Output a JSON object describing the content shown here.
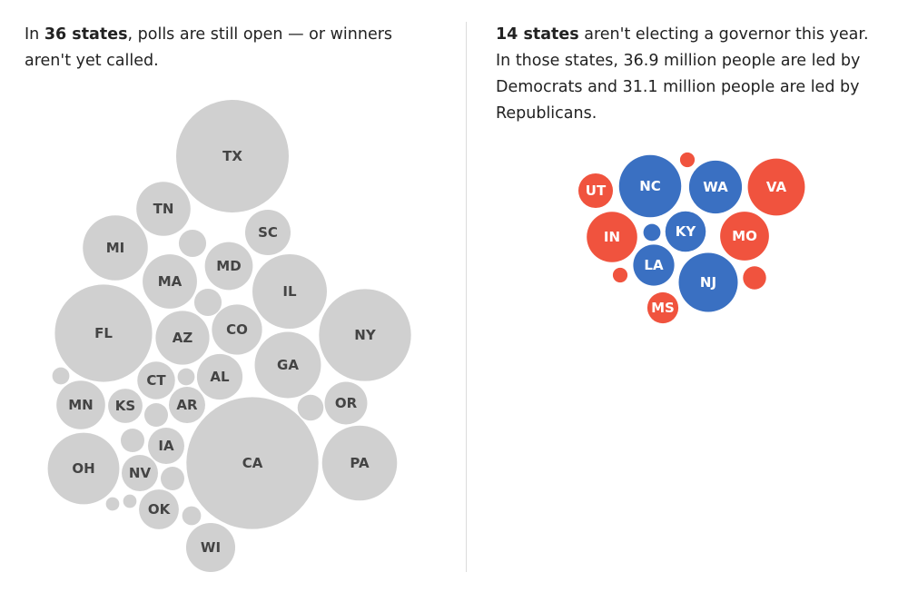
{
  "left_panel": {
    "text_strong": "36 states",
    "text_lead": "In ",
    "text_rest": ", polls are still open — or winners aren't yet called."
  },
  "right_panel": {
    "text_strong": "14 states",
    "text_rest": " aren't electing a governor this year. In those states, 36.9 million people are led by Democrats and 31.1 million people are led by Republicans."
  },
  "colors": {
    "pending": "#d0d0d0",
    "democrat": "#3a70c2",
    "republican": "#f0533e",
    "pending_label": "#444444",
    "party_label": "#ffffff"
  },
  "chart_data": [
    {
      "type": "bubble",
      "group": "pending",
      "bubbles": [
        {
          "label": "TX",
          "value": 100
        },
        {
          "label": "TN",
          "value": 23.1
        },
        {
          "label": "SC",
          "value": 16.3
        },
        {
          "label": "MI",
          "value": 33.3
        },
        {
          "label": "MD",
          "value": 18.1
        },
        {
          "label": "MA",
          "value": 23.3
        },
        {
          "label": "IL",
          "value": 43.7
        },
        {
          "label": "FL",
          "value": 74.7
        },
        {
          "label": "AZ",
          "value": 22.8
        },
        {
          "label": "CO",
          "value": 19.9
        },
        {
          "label": "NY",
          "value": 66.8
        },
        {
          "label": "GA",
          "value": 34.6
        },
        {
          "label": "CT",
          "value": 11.2
        },
        {
          "label": "AL",
          "value": 16.4
        },
        {
          "label": "MN",
          "value": 18.7
        },
        {
          "label": "KS",
          "value": 9.3
        },
        {
          "label": "AR",
          "value": 10.4
        },
        {
          "label": "OR",
          "value": 14.3
        },
        {
          "label": "IA",
          "value": 10.4
        },
        {
          "label": "CA",
          "value": 137.4
        },
        {
          "label": "PA",
          "value": 44.3
        },
        {
          "label": "OH",
          "value": 40.4
        },
        {
          "label": "NV",
          "value": 10.4
        },
        {
          "label": "OK",
          "value": 12.5
        },
        {
          "label": "WI",
          "value": 19.0
        },
        {
          "label": "",
          "value": 5.9
        },
        {
          "label": "",
          "value": 5.9
        },
        {
          "label": "",
          "value": 2.3
        },
        {
          "label": "",
          "value": 2.3
        },
        {
          "label": "",
          "value": 4.4
        },
        {
          "label": "",
          "value": 4.4
        },
        {
          "label": "",
          "value": 5.3
        },
        {
          "label": "",
          "value": 4.4
        },
        {
          "label": "",
          "value": 1.4
        },
        {
          "label": "",
          "value": 1.4
        },
        {
          "label": "",
          "value": 2.8
        }
      ]
    },
    {
      "type": "bubble",
      "group": "not-electing",
      "bubbles": [
        {
          "label": "NC",
          "value": 30.5,
          "party": "democrat"
        },
        {
          "label": "WA",
          "value": 22.0,
          "party": "democrat"
        },
        {
          "label": "KY",
          "value": 12.9,
          "party": "democrat"
        },
        {
          "label": "LA",
          "value": 13.3,
          "party": "democrat"
        },
        {
          "label": "NJ",
          "value": 27.5,
          "party": "democrat"
        },
        {
          "label": "",
          "value": 2.3,
          "party": "democrat"
        },
        {
          "label": "VA",
          "value": 25.7,
          "party": "republican"
        },
        {
          "label": "UT",
          "value": 9.4,
          "party": "republican"
        },
        {
          "label": "IN",
          "value": 20.1,
          "party": "republican"
        },
        {
          "label": "MO",
          "value": 18.8,
          "party": "republican"
        },
        {
          "label": "MS",
          "value": 7.6,
          "party": "republican"
        },
        {
          "label": "",
          "value": 1.7,
          "party": "republican"
        },
        {
          "label": "",
          "value": 1.7,
          "party": "republican"
        },
        {
          "label": "",
          "value": 4.2,
          "party": "republican"
        }
      ]
    }
  ]
}
